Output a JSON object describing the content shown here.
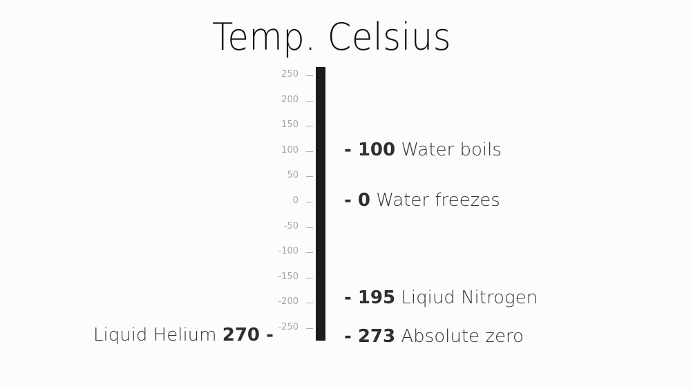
{
  "title": "Temp. Celsius",
  "scale": {
    "ticks": [
      "250",
      "200",
      "150",
      "100",
      "50",
      "0",
      "-50",
      "-100",
      "-150",
      "-200",
      "-250"
    ]
  },
  "annotations": {
    "water_boils": {
      "value": "- 100",
      "label": "Water boils"
    },
    "water_freezes": {
      "value": "- 0",
      "label": "Water freezes"
    },
    "liquid_nitrogen": {
      "value": "- 195",
      "label": "Liqiud Nitrogen"
    },
    "absolute_zero": {
      "value": "- 273",
      "label": "Absolute zero"
    },
    "liquid_helium": {
      "label": "Liquid Helium",
      "value": "270 -"
    }
  },
  "colors": {
    "bar": "#1c1b1c",
    "tick_text": "#a6a6a6",
    "background": "#fcfbfd"
  }
}
